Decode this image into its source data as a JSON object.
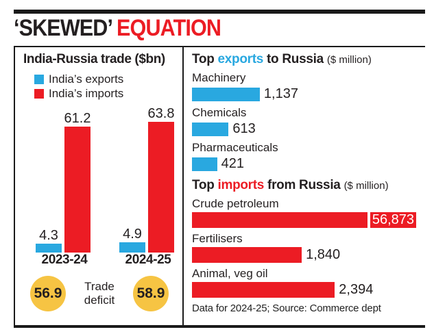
{
  "title": {
    "part1": "‘SKEWED’",
    "part2": "EQUATION"
  },
  "colors": {
    "red": "#ec1c24",
    "cyan": "#29a8e0",
    "yellow": "#f6c443",
    "ink": "#231f20",
    "rule": "#1a1a1a"
  },
  "chart_data": [
    {
      "type": "bar",
      "title": "India-Russia trade ($bn)",
      "categories": [
        "2023-24",
        "2024-25"
      ],
      "series": [
        {
          "name": "India’s exports",
          "color": "#29a8e0",
          "values": [
            4.3,
            4.9
          ],
          "value_labels": [
            "4.3",
            "4.9"
          ]
        },
        {
          "name": "India’s imports",
          "color": "#ec1c24",
          "values": [
            61.2,
            63.8
          ],
          "value_labels": [
            "61.2",
            "63.8"
          ]
        }
      ],
      "ylim": [
        0,
        65
      ],
      "grid": false,
      "legend_position": "top-left",
      "annotations": {
        "label": "Trade deficit",
        "values": [
          "56.9",
          "58.9"
        ]
      }
    },
    {
      "type": "bar",
      "orientation": "horizontal",
      "title": "Top exports to Russia ($ million)",
      "categories": [
        "Machinery",
        "Chemicals",
        "Pharmaceuticals"
      ],
      "values": [
        1137,
        613,
        421
      ],
      "value_labels": [
        "1,137",
        "613",
        "421"
      ],
      "bar_color": "#29a8e0"
    },
    {
      "type": "bar",
      "orientation": "horizontal",
      "title": "Top imports from Russia ($ million)",
      "categories": [
        "Crude petroleum",
        "Fertilisers",
        "Animal, veg oil"
      ],
      "values": [
        56873,
        1840,
        2394
      ],
      "value_labels": [
        "56,873",
        "1,840",
        "2,394"
      ],
      "bar_color": "#ec1c24",
      "note": "Crude petroleum bar clamped to panel width"
    }
  ],
  "right_panel": {
    "exports_header": {
      "pre": "Top ",
      "highlight": "exports",
      "post": " to Russia",
      "unit": "($ million)"
    },
    "imports_header": {
      "pre": "Top ",
      "highlight": "imports",
      "post": " from Russia",
      "unit": "($ million)"
    },
    "footer": "Data for 2024-25; Source: Commerce dept"
  }
}
